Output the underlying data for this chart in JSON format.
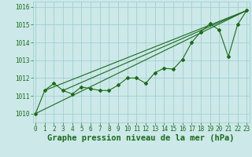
{
  "title": "Graphe pression niveau de la mer (hPa)",
  "x_values": [
    0,
    1,
    2,
    3,
    4,
    5,
    6,
    7,
    8,
    9,
    10,
    11,
    12,
    13,
    14,
    15,
    16,
    17,
    18,
    19,
    20,
    21,
    22,
    23
  ],
  "line1": [
    1010.0,
    1011.3,
    1011.7,
    1011.3,
    1011.1,
    1011.5,
    1011.4,
    1011.3,
    1011.3,
    1011.6,
    1012.0,
    1012.0,
    1011.7,
    1012.3,
    1012.55,
    1012.5,
    1013.05,
    1014.0,
    1014.6,
    1015.05,
    1014.7,
    1013.2,
    1015.0,
    1015.8
  ],
  "line2_x": [
    0,
    23
  ],
  "line2_y": [
    1010.0,
    1015.8
  ],
  "line3_x": [
    1,
    23
  ],
  "line3_y": [
    1011.3,
    1015.8
  ],
  "line4_x": [
    3,
    23
  ],
  "line4_y": [
    1011.3,
    1015.8
  ],
  "ylim": [
    1009.5,
    1016.3
  ],
  "xlim": [
    -0.3,
    23.3
  ],
  "yticks": [
    1010,
    1011,
    1012,
    1013,
    1014,
    1015,
    1016
  ],
  "xticks": [
    0,
    1,
    2,
    3,
    4,
    5,
    6,
    7,
    8,
    9,
    10,
    11,
    12,
    13,
    14,
    15,
    16,
    17,
    18,
    19,
    20,
    21,
    22,
    23
  ],
  "line_color": "#1a6b1a",
  "bg_color": "#cce8e8",
  "grid_color": "#99cccc",
  "label_color": "#1a6b1a",
  "tick_fontsize": 5.5,
  "xlabel_fontsize": 7.5
}
